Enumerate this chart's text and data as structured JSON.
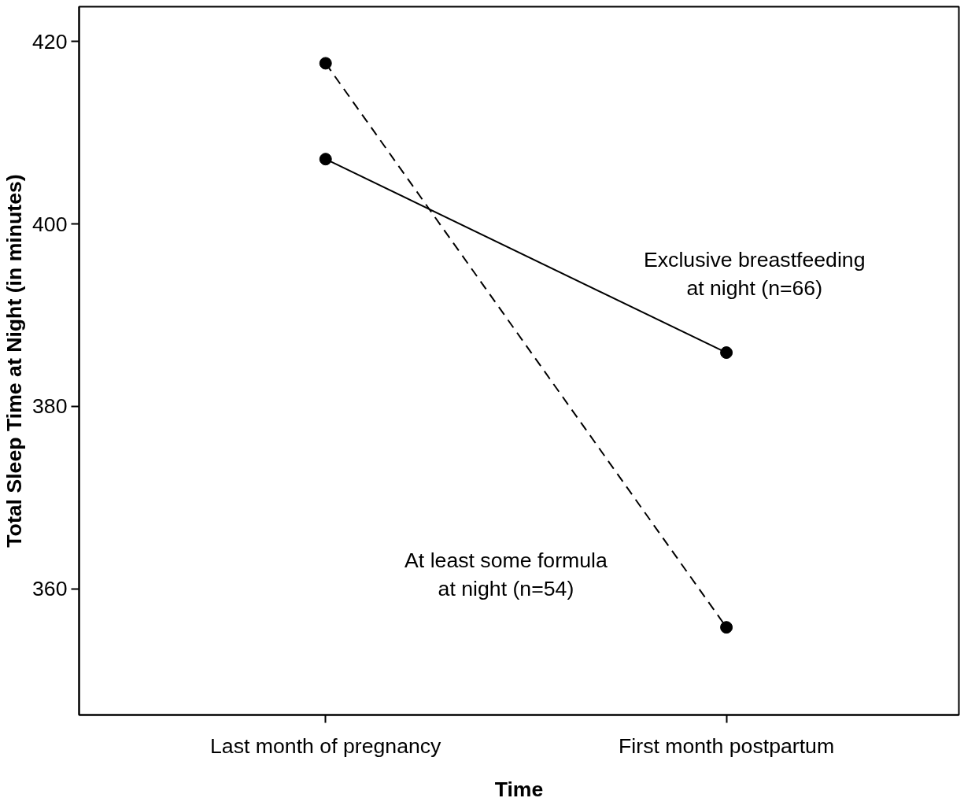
{
  "chart_data": {
    "type": "line",
    "xlabel": "Time",
    "ylabel": "Total Sleep Time at Night (in minutes)",
    "categories": [
      "Last month of pregnancy",
      "First month postpartum"
    ],
    "series": [
      {
        "name": "Exclusive breastfeeding\nat night (n=66)",
        "color": "#000000",
        "values": [
          407.1,
          385.9
        ],
        "line_style": "solid"
      },
      {
        "name": "At least some formula\nat night (n=54)",
        "color": "#000000",
        "values": [
          417.6,
          355.8
        ],
        "line_style": "dashed"
      }
    ],
    "ylim": [
      346.2,
      423.8
    ],
    "yticks": [
      360,
      380,
      400,
      420
    ],
    "marker": "circle",
    "grid": false
  }
}
